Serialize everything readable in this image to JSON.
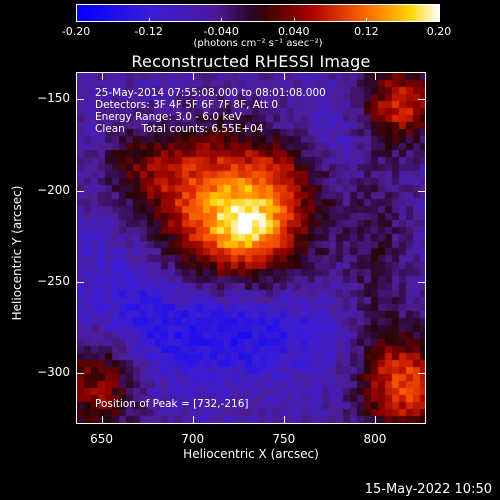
{
  "colorbar": {
    "ticks": [
      "-0.20",
      "-0.12",
      "-0.040",
      "0.040",
      "0.12",
      "0.20"
    ],
    "tick_values": [
      -0.2,
      -0.12,
      -0.04,
      0.04,
      0.12,
      0.2
    ],
    "range": [
      -0.2,
      0.2
    ],
    "units": "(photons cm⁻² s⁻¹ asec⁻²)"
  },
  "title": "Reconstructed RHESSI Image",
  "annotations": {
    "time_range": "25-May-2014 07:55:08.000 to 08:01:08.000",
    "detectors": "Detectors: 3F 4F 5F 6F 7F 8F, Att 0",
    "energy": "Energy Range: 3.0 - 6.0 keV",
    "method_counts": "Clean     Total counts: 6.55E+04",
    "peak": "Position of Peak = [732,-216]"
  },
  "axes": {
    "xlabel": "Heliocentric X (arcsec)",
    "ylabel": "Heliocentric Y (arcsec)",
    "xlim": [
      636,
      828
    ],
    "ylim": [
      -328,
      -135
    ],
    "xticks": [
      650,
      700,
      750,
      800
    ],
    "yticks": [
      -150,
      -200,
      -250,
      -300
    ],
    "xtick_labels": [
      "650",
      "700",
      "750",
      "800"
    ],
    "ytick_labels": [
      "−150",
      "−200",
      "−250",
      "−300"
    ]
  },
  "footer": {
    "date": "15-May-2022 10:50"
  }
}
